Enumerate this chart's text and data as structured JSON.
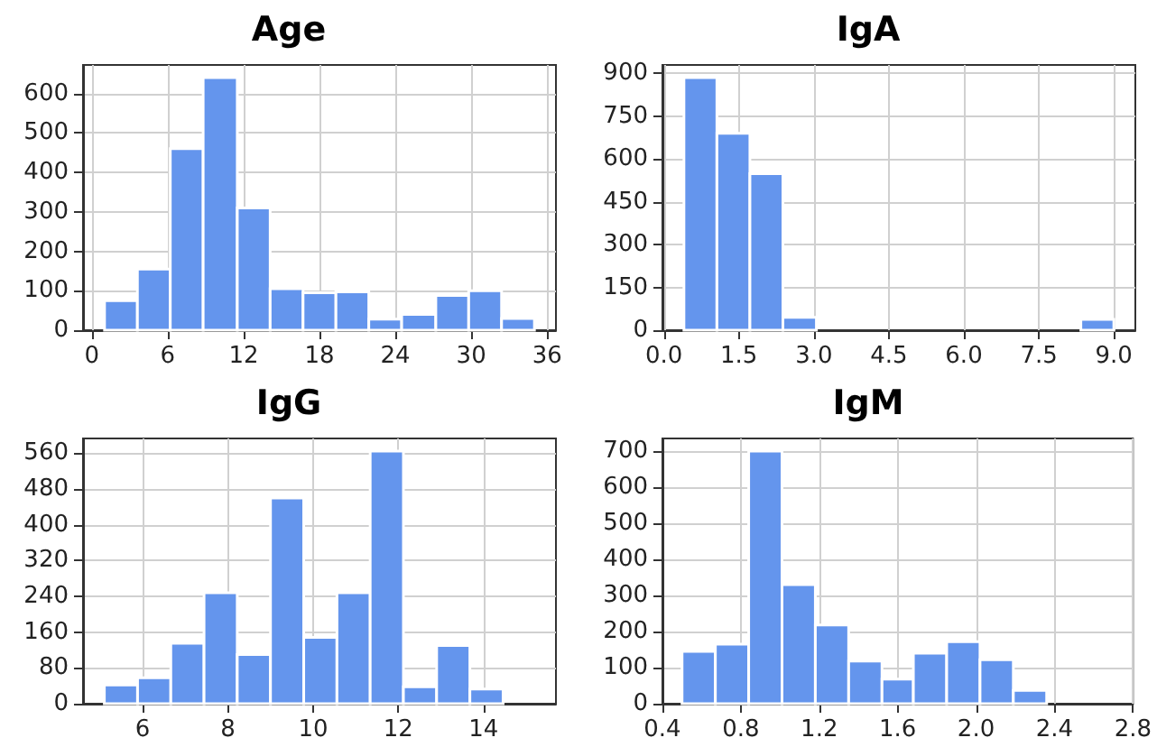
{
  "chart_data": [
    {
      "type": "histogram",
      "title": "Age",
      "color": "#6495ed",
      "bins": [
        1,
        3.6,
        6.2,
        8.8,
        11.5,
        14.1,
        16.7,
        19.3,
        21.9,
        24.5,
        27.2,
        29.8,
        32.4,
        35
      ],
      "values": [
        75,
        155,
        460,
        640,
        310,
        105,
        95,
        97,
        28,
        40,
        88,
        100,
        30
      ],
      "xlim": [
        -0.7,
        36.7
      ],
      "xticks": [
        0,
        6,
        12,
        18,
        24,
        30,
        36
      ],
      "ylim": [
        0,
        672
      ],
      "yticks": [
        0,
        100,
        200,
        300,
        400,
        500,
        600
      ],
      "grid": true
    },
    {
      "type": "histogram",
      "title": "IgA",
      "color": "#6495ed",
      "bins": [
        0.4,
        1.06,
        1.72,
        2.38,
        3.05,
        8.34,
        9.0
      ],
      "values": [
        885,
        690,
        548,
        45,
        0,
        38
      ],
      "xlim": [
        -0.03,
        9.43
      ],
      "xticks": [
        {
          "value": 0,
          "label": "0.0"
        },
        1.5,
        {
          "value": 3,
          "label": "3.0"
        },
        4.5,
        {
          "value": 6,
          "label": "6.0"
        },
        7.5,
        {
          "value": 9,
          "label": "9.0"
        }
      ],
      "ylim": [
        0,
        929
      ],
      "yticks": [
        0,
        150,
        300,
        450,
        600,
        750,
        900
      ],
      "grid": true
    },
    {
      "type": "histogram",
      "title": "IgG",
      "color": "#6495ed",
      "bins": [
        5.1,
        5.88,
        6.66,
        7.44,
        8.22,
        9.0,
        9.78,
        10.56,
        11.34,
        12.12,
        12.9,
        13.68,
        14.46
      ],
      "values": [
        42,
        58,
        135,
        248,
        110,
        460,
        148,
        248,
        565,
        38,
        130,
        33
      ],
      "xlim": [
        4.6,
        15.7
      ],
      "xticks": [
        6,
        8,
        10,
        12,
        14
      ],
      "ylim": [
        0,
        593
      ],
      "yticks": [
        0,
        80,
        160,
        240,
        320,
        400,
        480,
        560
      ],
      "grid": true
    },
    {
      "type": "histogram",
      "title": "IgM",
      "color": "#6495ed",
      "bins": [
        0.5,
        0.67,
        0.84,
        1.01,
        1.18,
        1.35,
        1.52,
        1.68,
        1.85,
        2.02,
        2.19,
        2.36
      ],
      "values": [
        145,
        165,
        700,
        330,
        218,
        118,
        68,
        140,
        172,
        122,
        37
      ],
      "xlim": [
        0.4,
        2.8
      ],
      "xticks": [
        0.4,
        0.8,
        1.2,
        1.6,
        {
          "value": 2,
          "label": "2.0"
        },
        2.4,
        2.8
      ],
      "ylim": [
        0,
        735
      ],
      "yticks": [
        0,
        100,
        200,
        300,
        400,
        500,
        600,
        700
      ],
      "grid": true
    }
  ]
}
